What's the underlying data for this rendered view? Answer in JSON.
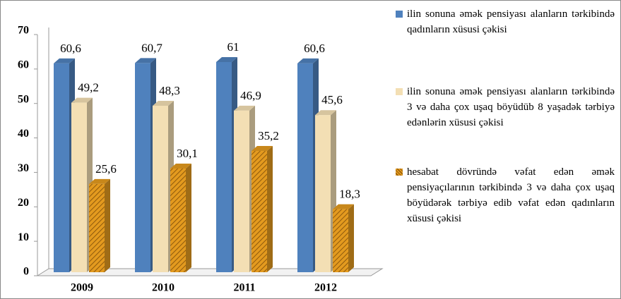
{
  "chart_data": {
    "type": "bar",
    "categories": [
      "2009",
      "2010",
      "2011",
      "2012"
    ],
    "series": [
      {
        "name": "ilin sonuna əmək pensiyası alanların tərkibində qadınların xüsusi çəkisi",
        "color": "#4f81bd",
        "values": [
          60.6,
          60.7,
          61,
          60.6
        ],
        "value_labels": [
          "60,6",
          "60,7",
          "61",
          "60,6"
        ]
      },
      {
        "name": "ilin sonuna əmək pensiyası alanların tərkibində 3 və daha çox uşaq böyüdüb 8 yaşadək tərbiyə edənlərin xüsusi çəkisi",
        "color": "#f3dfb4",
        "values": [
          49.2,
          48.3,
          46.9,
          45.6
        ],
        "value_labels": [
          "49,2",
          "48,3",
          "46,9",
          "45,6"
        ]
      },
      {
        "name": "hesabat dövründə vəfat edən əmək pensiyaçılarının tərkibində 3 və daha çox uşaq böyüdərək tərbiyə edib vəfat edən qadınların xüsusi çəkisi",
        "color": "#e39a1f",
        "values": [
          25.6,
          30.1,
          35.2,
          18.3
        ],
        "value_labels": [
          "25,6",
          "30,1",
          "35,2",
          "18,3"
        ]
      }
    ],
    "ylim": [
      0,
      70
    ],
    "yticks": [
      0,
      10,
      20,
      30,
      40,
      50,
      60,
      70
    ],
    "legend": "right"
  }
}
